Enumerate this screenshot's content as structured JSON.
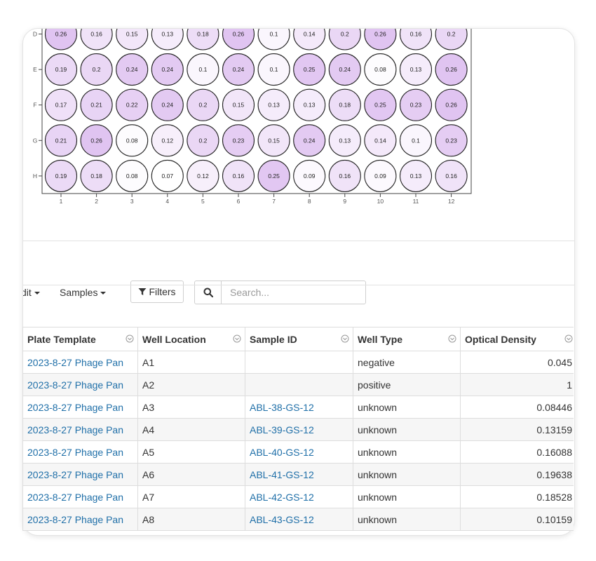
{
  "plate": {
    "row_labels": [
      "D",
      "E",
      "F",
      "G",
      "H"
    ],
    "col_labels": [
      "1",
      "2",
      "3",
      "4",
      "5",
      "6",
      "7",
      "8",
      "9",
      "10",
      "11",
      "12"
    ],
    "values": [
      [
        "0.26",
        "0.16",
        "0.15",
        "0.13",
        "0.18",
        "0.26",
        "0.1",
        "0.14",
        "0.2",
        "0.26",
        "0.16",
        "0.2"
      ],
      [
        "0.19",
        "0.2",
        "0.24",
        "0.24",
        "0.1",
        "0.24",
        "0.1",
        "0.25",
        "0.24",
        "0.08",
        "0.13",
        "0.26"
      ],
      [
        "0.17",
        "0.21",
        "0.22",
        "0.24",
        "0.2",
        "0.15",
        "0.13",
        "0.13",
        "0.18",
        "0.25",
        "0.23",
        "0.26"
      ],
      [
        "0.21",
        "0.26",
        "0.08",
        "0.12",
        "0.2",
        "0.23",
        "0.15",
        "0.24",
        "0.13",
        "0.14",
        "0.1",
        "0.23"
      ],
      [
        "0.19",
        "0.18",
        "0.08",
        "0.07",
        "0.12",
        "0.16",
        "0.25",
        "0.09",
        "0.16",
        "0.09",
        "0.13",
        "0.16"
      ]
    ],
    "color_low": "#ffffff",
    "color_high": "#e0c4f1"
  },
  "toolbar": {
    "edit_label": "dit",
    "samples_label": "Samples",
    "filters_label": "Filters",
    "search_placeholder": "Search..."
  },
  "table": {
    "columns": [
      "Plate Template",
      "Well Location",
      "Sample ID",
      "Well Type",
      "Optical Density"
    ],
    "rows": [
      [
        "2023-8-27 Phage Pan",
        "A1",
        "",
        "negative",
        "0.045"
      ],
      [
        "2023-8-27 Phage Pan",
        "A2",
        "",
        "positive",
        "1"
      ],
      [
        "2023-8-27 Phage Pan",
        "A3",
        "ABL-38-GS-12",
        "unknown",
        "0.08446"
      ],
      [
        "2023-8-27 Phage Pan",
        "A4",
        "ABL-39-GS-12",
        "unknown",
        "0.13159"
      ],
      [
        "2023-8-27 Phage Pan",
        "A5",
        "ABL-40-GS-12",
        "unknown",
        "0.16088"
      ],
      [
        "2023-8-27 Phage Pan",
        "A6",
        "ABL-41-GS-12",
        "unknown",
        "0.19638"
      ],
      [
        "2023-8-27 Phage Pan",
        "A7",
        "ABL-42-GS-12",
        "unknown",
        "0.18528"
      ],
      [
        "2023-8-27 Phage Pan",
        "A8",
        "ABL-43-GS-12",
        "unknown",
        "0.10159"
      ]
    ]
  }
}
